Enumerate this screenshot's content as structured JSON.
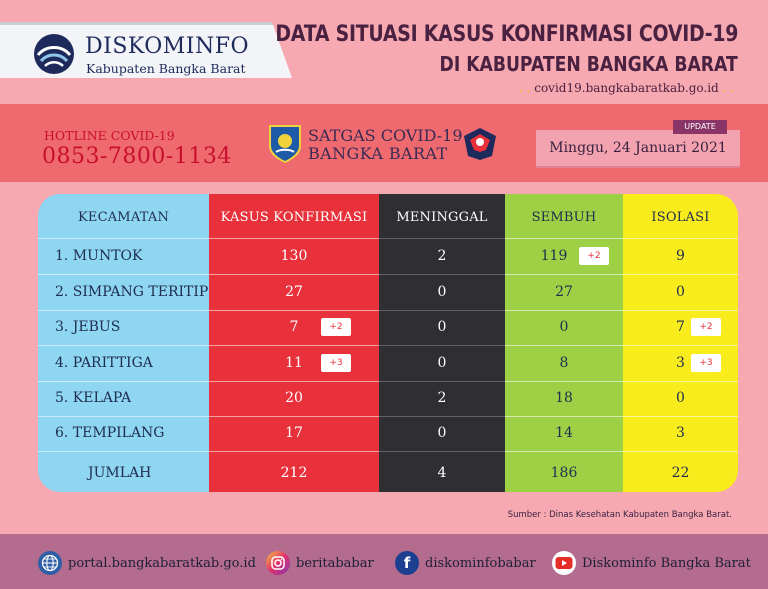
{
  "header": {
    "logo_title": "DISKOMINFO",
    "logo_subtitle": "Kabupaten Bangka Barat",
    "title_line1": "DATA SITUASI KASUS KONFIRMASI COVID-19",
    "title_line2": "DI KABUPATEN BANGKA BARAT",
    "website": "covid19.bangkabaratkab.go.id"
  },
  "band": {
    "hotline_label": "HOTLINE COVID-19",
    "hotline_number": "0853-7800-1134",
    "satgas_line1": "SATGAS COVID-19",
    "satgas_line2": "BANGKA BARAT",
    "update_label": "UPDATE",
    "date": "Minggu, 24 Januari 2021"
  },
  "table": {
    "headers": {
      "kecamatan": "KECAMATAN",
      "konfirmasi": "KASUS KONFIRMASI",
      "meninggal": "MENINGGAL",
      "sembuh": "SEMBUH",
      "isolasi": "ISOLASI"
    },
    "rows": [
      {
        "kecamatan": "1. MUNTOK",
        "konfirmasi": "130",
        "konfirmasi_delta": "",
        "meninggal": "2",
        "sembuh": "119",
        "sembuh_delta": "+2",
        "isolasi": "9",
        "isolasi_delta": ""
      },
      {
        "kecamatan": "2. SIMPANG TERITIP",
        "konfirmasi": "27",
        "konfirmasi_delta": "",
        "meninggal": "0",
        "sembuh": "27",
        "sembuh_delta": "",
        "isolasi": "0",
        "isolasi_delta": ""
      },
      {
        "kecamatan": "3. JEBUS",
        "konfirmasi": "7",
        "konfirmasi_delta": "+2",
        "meninggal": "0",
        "sembuh": "0",
        "sembuh_delta": "",
        "isolasi": "7",
        "isolasi_delta": "+2"
      },
      {
        "kecamatan": "4. PARITTIGA",
        "konfirmasi": "11",
        "konfirmasi_delta": "+3",
        "meninggal": "0",
        "sembuh": "8",
        "sembuh_delta": "",
        "isolasi": "3",
        "isolasi_delta": "+3"
      },
      {
        "kecamatan": "5. KELAPA",
        "konfirmasi": "20",
        "konfirmasi_delta": "",
        "meninggal": "2",
        "sembuh": "18",
        "sembuh_delta": "",
        "isolasi": "0",
        "isolasi_delta": ""
      },
      {
        "kecamatan": "6. TEMPILANG",
        "konfirmasi": "17",
        "konfirmasi_delta": "",
        "meninggal": "0",
        "sembuh": "14",
        "sembuh_delta": "",
        "isolasi": "3",
        "isolasi_delta": ""
      }
    ],
    "total": {
      "label": "JUMLAH",
      "konfirmasi": "212",
      "meninggal": "4",
      "sembuh": "186",
      "isolasi": "22"
    }
  },
  "source": "Sumber : Dinas Kesehatan Kabupaten Bangka Barat.",
  "footer": {
    "portal": "portal.bangkabaratkab.go.id",
    "instagram": "beritababar",
    "facebook": "diskominfobabar",
    "youtube": "Diskominfo Bangka Barat"
  },
  "icons": [
    "globe-icon",
    "instagram-icon",
    "facebook-icon",
    "youtube-icon"
  ],
  "colors": {
    "konfirmasi": "#e8313a",
    "meninggal": "#2e2e33",
    "sembuh": "#9ed045",
    "isolasi": "#f9ec1c",
    "kecamatan": "#8ed6f2"
  }
}
